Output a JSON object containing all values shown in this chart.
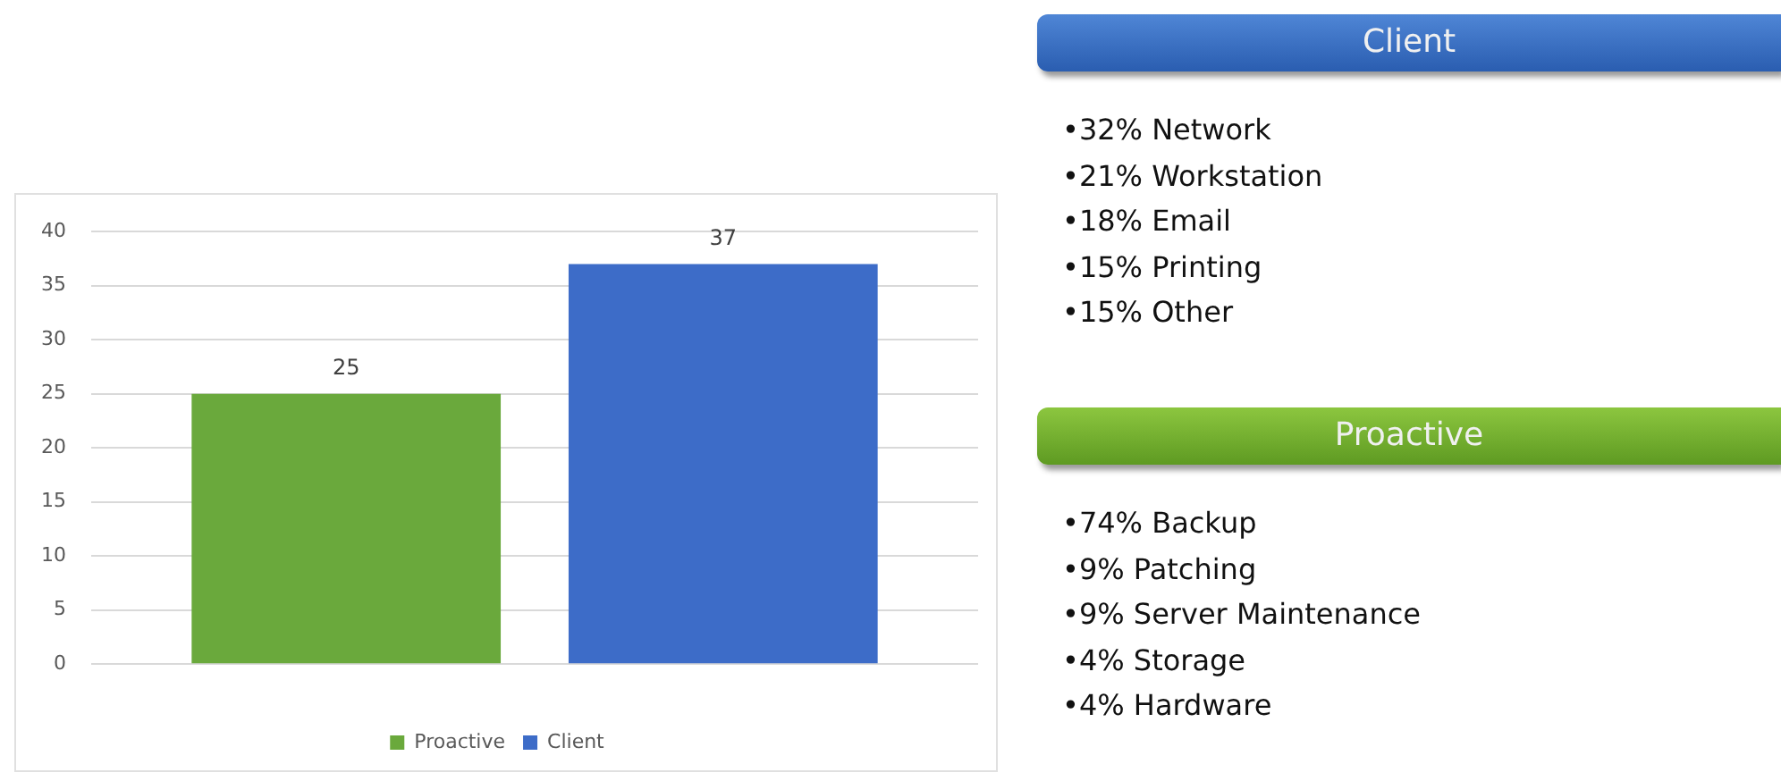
{
  "chart_data": [
    {
      "type": "bar",
      "categories": [
        null
      ],
      "series": [
        {
          "name": "Proactive",
          "color": "#6aa93c",
          "values": [
            25
          ]
        },
        {
          "name": "Client",
          "color": "#3d6cc8",
          "values": [
            37
          ]
        }
      ],
      "ylim": [
        0,
        40
      ],
      "yticks": [
        0,
        5,
        10,
        15,
        20,
        25,
        30,
        35,
        40
      ],
      "grid": "y",
      "legend": "bottom",
      "data_labels": true
    },
    {
      "type": "other",
      "title": "Client",
      "annotations": [
        "•32% Network",
        "•21% Workstation",
        "•18% Email",
        "•15% Printing",
        "•15% Other"
      ]
    },
    {
      "type": "other",
      "title": "Proactive",
      "annotations": [
        "•74% Backup",
        "•9% Patching",
        "•9% Server Maintenance",
        "•4% Storage",
        "•4% Hardware"
      ]
    }
  ]
}
